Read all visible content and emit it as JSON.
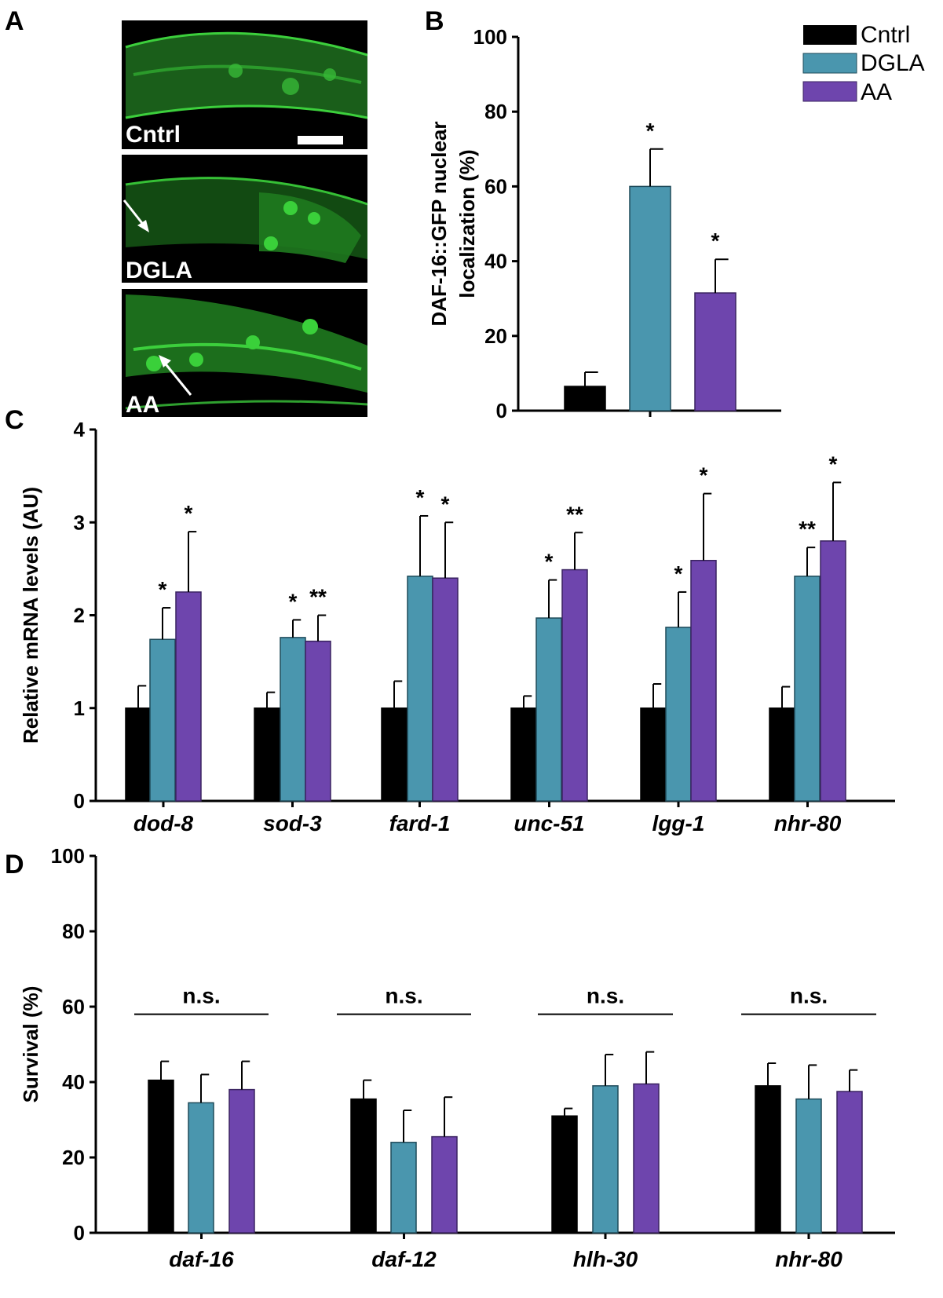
{
  "panel_letters": {
    "a": "A",
    "b": "B",
    "c": "C",
    "d": "D"
  },
  "colors": {
    "cntrl": "#000000",
    "dgla": "#4a96ae",
    "aa": "#6e45ad",
    "gfp": "#2fa02f",
    "bg_micro": "#000000"
  },
  "micrographs": {
    "labels": [
      "Cntrl",
      "DGLA",
      "AA"
    ],
    "scale_bar": true
  },
  "legend": {
    "items": [
      "Cntrl",
      "DGLA",
      "AA"
    ]
  },
  "chart_data": [
    {
      "id": "B",
      "type": "bar",
      "title": "",
      "xlabel": "",
      "ylabel_lines": [
        "DAF-16::GFP nuclear",
        "localization (%)"
      ],
      "ylim": [
        0,
        100
      ],
      "yticks": [
        0,
        20,
        40,
        60,
        80,
        100
      ],
      "categories": [
        ""
      ],
      "series": [
        {
          "name": "Cntrl",
          "values": [
            6.5
          ],
          "errors": [
            3.8
          ],
          "sig": [
            ""
          ]
        },
        {
          "name": "DGLA",
          "values": [
            60
          ],
          "errors": [
            10
          ],
          "sig": [
            "*"
          ]
        },
        {
          "name": "AA",
          "values": [
            31.5
          ],
          "errors": [
            9
          ],
          "sig": [
            "*"
          ]
        }
      ]
    },
    {
      "id": "C",
      "type": "bar",
      "title": "",
      "xlabel": "",
      "ylabel": "Relative mRNA levels (AU)",
      "ylim": [
        0,
        4
      ],
      "yticks": [
        0,
        1,
        2,
        3,
        4
      ],
      "categories": [
        "dod-8",
        "sod-3",
        "fard-1",
        "unc-51",
        "lgg-1",
        "nhr-80"
      ],
      "series": [
        {
          "name": "Cntrl",
          "values": [
            1,
            1,
            1,
            1,
            1,
            1
          ],
          "errors": [
            0.24,
            0.17,
            0.29,
            0.13,
            0.26,
            0.23
          ],
          "sig": [
            "",
            "",
            "",
            "",
            "",
            ""
          ]
        },
        {
          "name": "DGLA",
          "values": [
            1.74,
            1.76,
            2.42,
            1.97,
            1.87,
            2.42
          ],
          "errors": [
            0.34,
            0.19,
            0.65,
            0.41,
            0.38,
            0.31
          ],
          "sig": [
            "*",
            "*",
            "*",
            "*",
            "*",
            "**"
          ]
        },
        {
          "name": "AA",
          "values": [
            2.25,
            1.72,
            2.4,
            2.49,
            2.59,
            2.8
          ],
          "errors": [
            0.65,
            0.28,
            0.6,
            0.4,
            0.72,
            0.63
          ],
          "sig": [
            "*",
            "**",
            "*",
            "**",
            "*",
            "*"
          ]
        }
      ]
    },
    {
      "id": "D",
      "type": "bar",
      "title": "",
      "xlabel": "",
      "ylabel": "Survival (%)",
      "ylim": [
        0,
        100
      ],
      "yticks": [
        0,
        20,
        40,
        60,
        80,
        100
      ],
      "categories": [
        "daf-16",
        "daf-12",
        "hlh-30",
        "nhr-80"
      ],
      "group_annotation": [
        "n.s.",
        "n.s.",
        "n.s.",
        "n.s."
      ],
      "series": [
        {
          "name": "Cntrl",
          "values": [
            40.5,
            35.5,
            31,
            39
          ],
          "errors": [
            5,
            5,
            2,
            6
          ]
        },
        {
          "name": "DGLA",
          "values": [
            34.5,
            24,
            39,
            35.5
          ],
          "errors": [
            7.5,
            8.5,
            8.3,
            9
          ]
        },
        {
          "name": "AA",
          "values": [
            38,
            25.5,
            39.5,
            37.5
          ],
          "errors": [
            7.5,
            10.5,
            8.5,
            5.7
          ]
        }
      ]
    }
  ]
}
